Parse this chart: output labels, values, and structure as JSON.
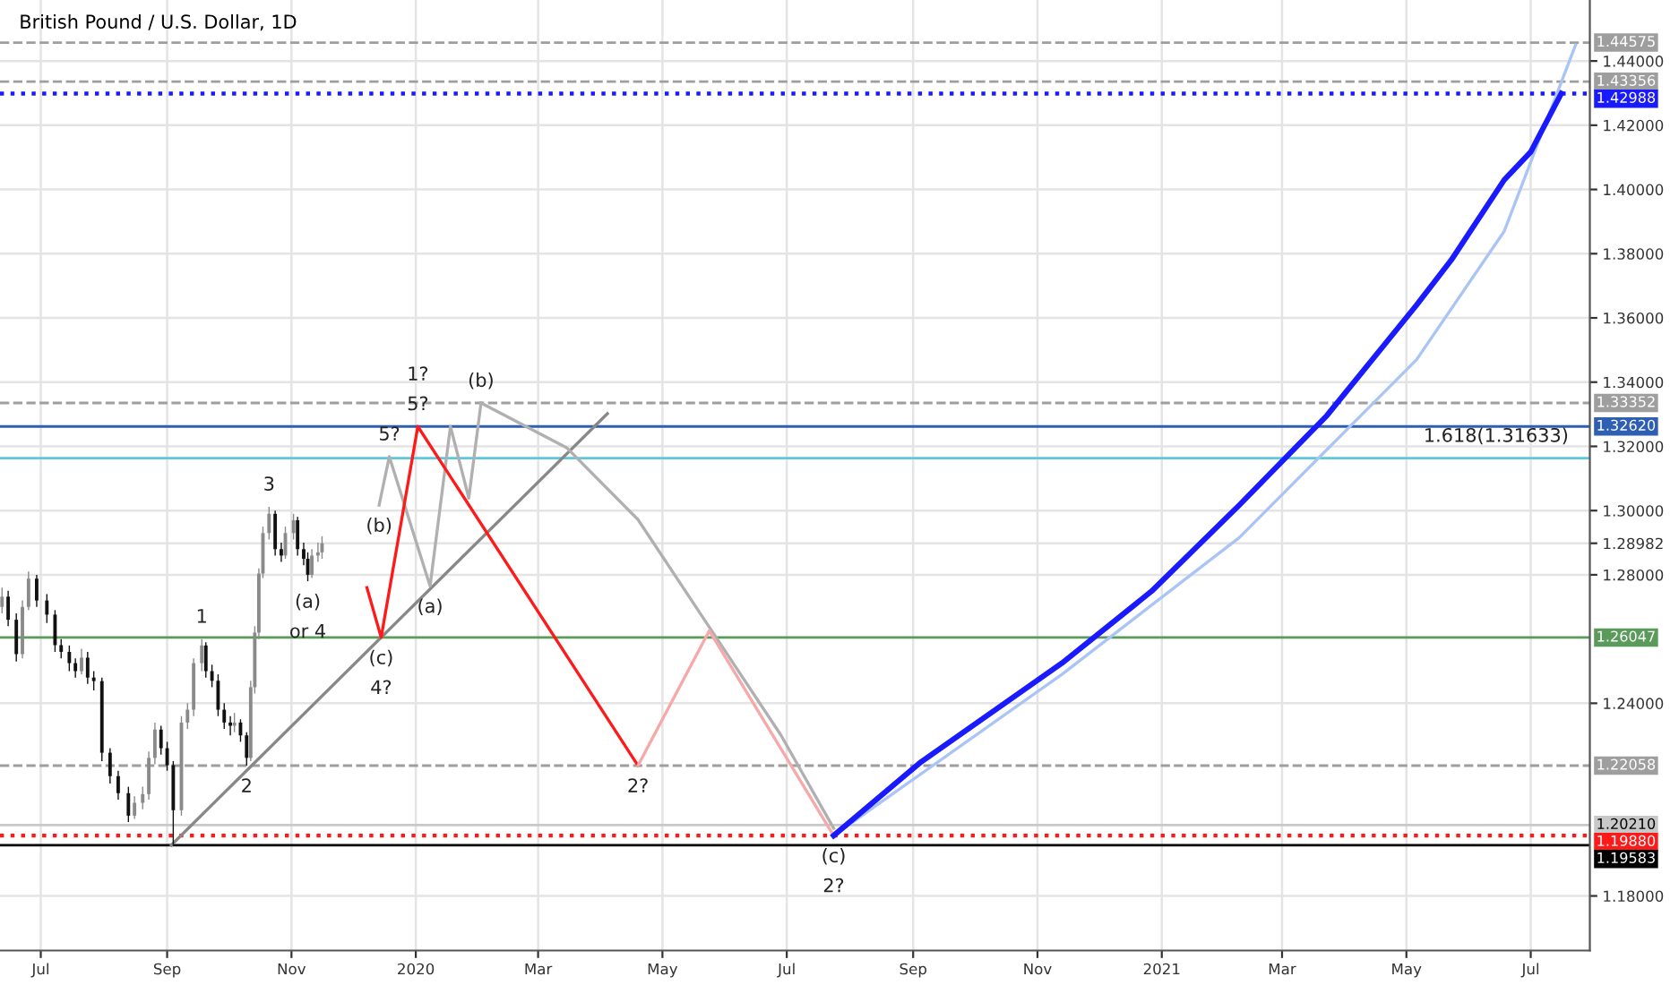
{
  "chart_data": {
    "type": "candlestick",
    "title": "British Pound / U.S. Dollar, 1D",
    "x": [
      "2019-06-12",
      "2019-06-15",
      "2019-06-19",
      "2019-06-22",
      "2019-06-25",
      "2019-06-29",
      "2019-07-04",
      "2019-07-08",
      "2019-07-11",
      "2019-07-15",
      "2019-07-18",
      "2019-07-21",
      "2019-07-24",
      "2019-07-27",
      "2019-07-31",
      "2019-08-04",
      "2019-08-08",
      "2019-08-13",
      "2019-08-16",
      "2019-08-20",
      "2019-08-23",
      "2019-08-26",
      "2019-08-29",
      "2019-09-01",
      "2019-09-04",
      "2019-09-08",
      "2019-09-11",
      "2019-09-14",
      "2019-09-18",
      "2019-09-20",
      "2019-09-23",
      "2019-09-26",
      "2019-09-29",
      "2019-10-02",
      "2019-10-04",
      "2019-10-07",
      "2019-10-10",
      "2019-10-12",
      "2019-10-14",
      "2019-10-16",
      "2019-10-18",
      "2019-10-21",
      "2019-10-24",
      "2019-10-27",
      "2019-10-29",
      "2019-11-02",
      "2019-11-04",
      "2019-11-07",
      "2019-11-09",
      "2019-11-11",
      "2019-11-14",
      "2019-11-16"
    ],
    "ohlc": [
      [
        1.27,
        1.276,
        1.268,
        1.2732
      ],
      [
        1.2732,
        1.275,
        1.264,
        1.266
      ],
      [
        1.266,
        1.268,
        1.253,
        1.2553
      ],
      [
        1.2553,
        1.272,
        1.254,
        1.27
      ],
      [
        1.27,
        1.281,
        1.269,
        1.2788
      ],
      [
        1.2788,
        1.28,
        1.27,
        1.272
      ],
      [
        1.272,
        1.274,
        1.265,
        1.2676
      ],
      [
        1.2676,
        1.269,
        1.256,
        1.2581
      ],
      [
        1.2581,
        1.26,
        1.254,
        1.256
      ],
      [
        1.256,
        1.258,
        1.25,
        1.2525
      ],
      [
        1.2525,
        1.254,
        1.248,
        1.25
      ],
      [
        1.25,
        1.257,
        1.249,
        1.2542
      ],
      [
        1.2542,
        1.256,
        1.246,
        1.248
      ],
      [
        1.248,
        1.25,
        1.244,
        1.2469
      ],
      [
        1.2469,
        1.248,
        1.222,
        1.2246
      ],
      [
        1.2246,
        1.226,
        1.215,
        1.2173
      ],
      [
        1.2173,
        1.219,
        1.21,
        1.212
      ],
      [
        1.212,
        1.214,
        1.203,
        1.205
      ],
      [
        1.205,
        1.211,
        1.204,
        1.209
      ],
      [
        1.209,
        1.214,
        1.207,
        1.2117
      ],
      [
        1.2117,
        1.225,
        1.21,
        1.223
      ],
      [
        1.223,
        1.234,
        1.221,
        1.2318
      ],
      [
        1.2318,
        1.233,
        1.224,
        1.226
      ],
      [
        1.226,
        1.228,
        1.219,
        1.2207
      ],
      [
        1.2207,
        1.222,
        1.1958,
        1.2067
      ],
      [
        1.2067,
        1.236,
        1.205,
        1.234
      ],
      [
        1.234,
        1.24,
        1.232,
        1.238
      ],
      [
        1.238,
        1.254,
        1.236,
        1.2525
      ],
      [
        1.2525,
        1.26,
        1.25,
        1.258
      ],
      [
        1.258,
        1.259,
        1.248,
        1.25
      ],
      [
        1.25,
        1.252,
        1.245,
        1.247
      ],
      [
        1.247,
        1.249,
        1.236,
        1.238
      ],
      [
        1.238,
        1.24,
        1.232,
        1.234
      ],
      [
        1.234,
        1.236,
        1.23,
        1.233
      ],
      [
        1.233,
        1.237,
        1.231,
        1.234
      ],
      [
        1.234,
        1.235,
        1.228,
        1.23
      ],
      [
        1.23,
        1.231,
        1.2206,
        1.223
      ],
      [
        1.223,
        1.247,
        1.222,
        1.245
      ],
      [
        1.245,
        1.264,
        1.243,
        1.262
      ],
      [
        1.262,
        1.282,
        1.26,
        1.2804
      ],
      [
        1.2804,
        1.295,
        1.279,
        1.293
      ],
      [
        1.293,
        1.3012,
        1.291,
        1.299
      ],
      [
        1.299,
        1.3,
        1.286,
        1.288
      ],
      [
        1.288,
        1.29,
        1.284,
        1.286
      ],
      [
        1.286,
        1.295,
        1.285,
        1.293
      ],
      [
        1.293,
        1.299,
        1.291,
        1.297
      ],
      [
        1.297,
        1.298,
        1.286,
        1.288
      ],
      [
        1.288,
        1.29,
        1.283,
        1.285
      ],
      [
        1.285,
        1.287,
        1.278,
        1.28
      ],
      [
        1.28,
        1.288,
        1.279,
        1.286
      ],
      [
        1.286,
        1.29,
        1.284,
        1.287
      ],
      [
        1.287,
        1.292,
        1.285,
        1.28982
      ]
    ],
    "series": [
      {
        "type": "line",
        "color": "#888888",
        "x": [
          "2019-09-03",
          "2020-04-04"
        ],
        "values": [
          1.1958,
          1.3302
        ]
      },
      {
        "type": "line",
        "color": "#b0b0b0",
        "x": [
          "2019-12-14",
          "2019-12-19",
          "2020-01-08",
          "2020-01-18",
          "2020-01-27",
          "2020-02-02"
        ],
        "values": [
          1.3017,
          1.3168,
          1.2765,
          1.3262,
          1.3039,
          1.3335
        ]
      },
      {
        "type": "line",
        "color": "#b0b0b0",
        "x": [
          "2020-02-02",
          "2020-03-15",
          "2020-04-19",
          "2020-05-24",
          "2020-06-28",
          "2020-07-24"
        ],
        "values": [
          1.3335,
          1.3196,
          1.2972,
          1.2637,
          1.2302,
          1.2011
        ]
      },
      {
        "type": "line",
        "color": "#ff1a1a",
        "x": [
          "2019-12-08",
          "2019-12-15",
          "2020-01-02",
          "2020-04-19"
        ],
        "values": [
          1.276,
          1.2605,
          1.3262,
          1.2206
        ]
      },
      {
        "type": "line",
        "color": "#f7a8a8",
        "x": [
          "2020-04-19",
          "2020-05-24",
          "2020-07-24"
        ],
        "values": [
          1.2206,
          1.2626,
          1.1988
        ]
      },
      {
        "type": "line",
        "color": "#a9c4f5",
        "x": [
          "2020-07-24",
          "2020-11-13",
          "2021-02-08",
          "2021-05-06",
          "2021-06-18",
          "2021-07-23"
        ],
        "values": [
          1.1988,
          1.249,
          1.2916,
          1.347,
          1.387,
          1.445
        ]
      },
      {
        "type": "line",
        "color": "#1a1aff",
        "x": [
          "2020-07-24",
          "2020-09-05",
          "2020-11-13",
          "2020-12-27",
          "2021-02-08",
          "2021-03-23",
          "2021-05-06",
          "2021-05-23",
          "2021-06-18",
          "2021-07-01",
          "2021-07-16"
        ],
        "values": [
          1.1988,
          1.2218,
          1.2525,
          1.2749,
          1.3017,
          1.3296,
          1.364,
          1.378,
          1.403,
          1.4117,
          1.4299
        ]
      }
    ],
    "xlim": [
      "2019-06-11",
      "2021-07-30"
    ],
    "xticks": [
      {
        "value": "2019-07-01",
        "label": "Jul"
      },
      {
        "value": "2019-09-01",
        "label": "Sep"
      },
      {
        "value": "2019-11-01",
        "label": "Nov"
      },
      {
        "value": "2020-01-01",
        "label": "2020"
      },
      {
        "value": "2020-03-01",
        "label": "Mar"
      },
      {
        "value": "2020-05-01",
        "label": "May"
      },
      {
        "value": "2020-07-01",
        "label": "Jul"
      },
      {
        "value": "2020-09-01",
        "label": "Sep"
      },
      {
        "value": "2020-11-01",
        "label": "Nov"
      },
      {
        "value": "2021-01-01",
        "label": "2021"
      },
      {
        "value": "2021-03-01",
        "label": "Mar"
      },
      {
        "value": "2021-05-01",
        "label": "May"
      },
      {
        "value": "2021-07-01",
        "label": "Jul"
      }
    ],
    "ylim": [
      1.163,
      1.459
    ],
    "yticks": [
      {
        "value": 1.18,
        "label": "1.18000"
      },
      {
        "value": 1.24,
        "label": "1.24000"
      },
      {
        "value": 1.28,
        "label": "1.28000"
      },
      {
        "value": 1.28982,
        "label": "1.28982"
      },
      {
        "value": 1.3,
        "label": "1.30000"
      },
      {
        "value": 1.32,
        "label": "1.32000"
      },
      {
        "value": 1.34,
        "label": "1.34000"
      },
      {
        "value": 1.36,
        "label": "1.36000"
      },
      {
        "value": 1.38,
        "label": "1.38000"
      },
      {
        "value": 1.4,
        "label": "1.40000"
      },
      {
        "value": 1.42,
        "label": "1.42000"
      },
      {
        "value": 1.44,
        "label": "1.44000"
      }
    ],
    "ref_lines": [
      {
        "axis": "y",
        "value": 1.44575,
        "label": "1.44575",
        "color": "#9e9e9e",
        "line_style": "dashed"
      },
      {
        "axis": "y",
        "value": 1.43356,
        "label": "1.43356",
        "color": "#9e9e9e",
        "line_style": "dashed"
      },
      {
        "axis": "y",
        "value": 1.42988,
        "label": "1.42988",
        "color": "#1a1aff",
        "line_style": "dotted"
      },
      {
        "axis": "y",
        "value": 1.33352,
        "label": "1.33352",
        "color": "#9e9e9e",
        "line_style": "dashed"
      },
      {
        "axis": "y",
        "value": 1.3262,
        "label": "1.32620",
        "color": "#2f5fb3",
        "line_style": "solid"
      },
      {
        "axis": "y",
        "value": 1.31633,
        "color": "#5bc8e0",
        "line_style": "solid"
      },
      {
        "axis": "y",
        "value": 1.26047,
        "label": "1.26047",
        "color": "#5a9a5a",
        "line_style": "solid"
      },
      {
        "axis": "y",
        "value": 1.22058,
        "label": "1.22058",
        "color": "#9e9e9e",
        "line_style": "dashed"
      },
      {
        "axis": "y",
        "value": 1.2021,
        "label": "1.20210",
        "color": "#c8c8c8",
        "line_style": "solid"
      },
      {
        "axis": "y",
        "value": 1.1988,
        "label": "1.19880",
        "color": "#ff1a1a",
        "line_style": "dotted"
      },
      {
        "axis": "y",
        "value": 1.19583,
        "label": "1.19583",
        "color": "#000000",
        "line_style": "solid"
      }
    ],
    "annotations": [
      {
        "text": "5?",
        "x": "2020-01-02",
        "y": 1.3262
      },
      {
        "text": "1?",
        "x": "2020-01-02",
        "y": 1.3262
      },
      {
        "text": "(b)",
        "x": "2020-02-02",
        "y": 1.3335
      },
      {
        "text": "5?",
        "x": "2019-12-19",
        "y": 1.3168
      },
      {
        "text": "3",
        "x": "2019-10-21",
        "y": 1.3012
      },
      {
        "text": "(b)",
        "x": "2019-12-14",
        "y": 1.3017
      },
      {
        "text": "1",
        "x": "2019-09-18",
        "y": 1.26
      },
      {
        "text": "(a)",
        "x": "2019-11-09",
        "y": 1.278
      },
      {
        "text": "or 4",
        "x": "2019-11-09",
        "y": 1.278
      },
      {
        "text": "(a)",
        "x": "2020-01-08",
        "y": 1.2765
      },
      {
        "text": "(c)",
        "x": "2019-12-15",
        "y": 1.2605
      },
      {
        "text": "4?",
        "x": "2019-12-15",
        "y": 1.2605
      },
      {
        "text": "2",
        "x": "2019-10-10",
        "y": 1.2206
      },
      {
        "text": "2?",
        "x": "2020-04-19",
        "y": 1.2206
      },
      {
        "text": "(c)",
        "x": "2020-07-24",
        "y": 1.1988
      },
      {
        "text": "2?",
        "x": "2020-07-24",
        "y": 1.1988
      },
      {
        "text": "1.618(1.31633)",
        "x": "2021-06-14",
        "y": 1.31633
      }
    ],
    "grid": true,
    "legend": false
  }
}
